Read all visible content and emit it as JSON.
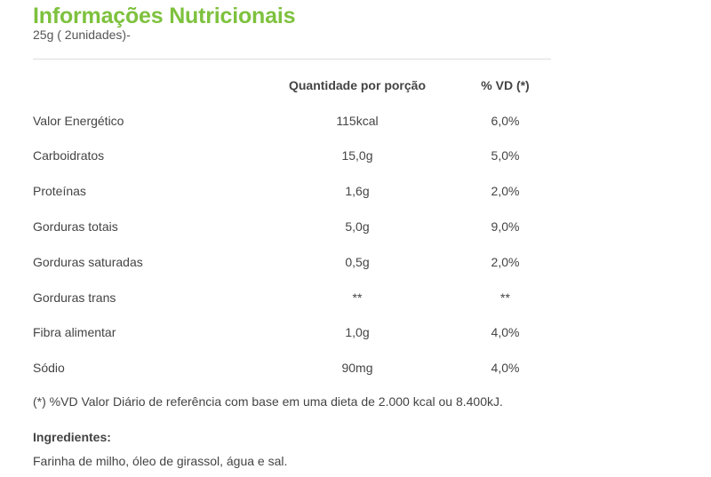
{
  "header": {
    "title": "Informações Nutricionais",
    "serving": "25g ( 2unidades)-"
  },
  "table": {
    "columns": [
      "",
      "Quantidade por porção",
      "% VD (*)"
    ],
    "rows": [
      {
        "name": "Valor Energético",
        "amount": "115kcal",
        "vd": "6,0%"
      },
      {
        "name": "Carboidratos",
        "amount": "15,0g",
        "vd": "5,0%"
      },
      {
        "name": "Proteínas",
        "amount": "1,6g",
        "vd": "2,0%"
      },
      {
        "name": "Gorduras totais",
        "amount": "5,0g",
        "vd": "9,0%"
      },
      {
        "name": "Gorduras saturadas",
        "amount": "0,5g",
        "vd": "2,0%"
      },
      {
        "name": "Gorduras trans",
        "amount": "**",
        "vd": "**"
      },
      {
        "name": "Fibra alimentar",
        "amount": "1,0g",
        "vd": "4,0%"
      },
      {
        "name": "Sódio",
        "amount": "90mg",
        "vd": "4,0%"
      }
    ]
  },
  "footnote": "(*) %VD Valor Diário de referência com base em uma dieta de 2.000 kcal ou 8.400kJ.",
  "ingredients": {
    "title": "Ingredientes:",
    "text": "Farinha de milho, óleo de girassol, água e sal."
  },
  "colors": {
    "title": "#7ec13e",
    "text": "#444444",
    "divider": "#dddddd"
  }
}
